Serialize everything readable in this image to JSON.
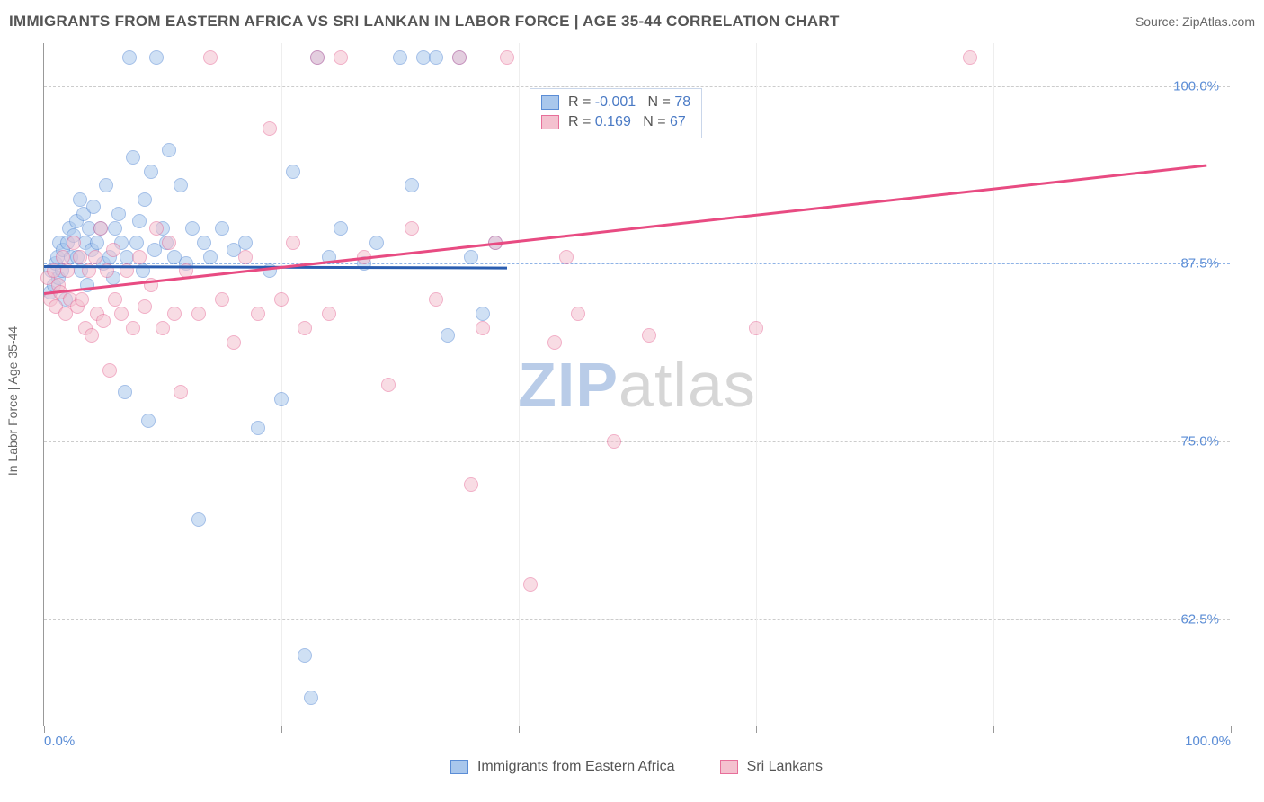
{
  "title": "IMMIGRANTS FROM EASTERN AFRICA VS SRI LANKAN IN LABOR FORCE | AGE 35-44 CORRELATION CHART",
  "source": "Source: ZipAtlas.com",
  "ylabel": "In Labor Force | Age 35-44",
  "watermark_a": "ZIP",
  "watermark_b": "atlas",
  "chart": {
    "type": "scatter",
    "xlim": [
      0,
      100
    ],
    "ylim": [
      55,
      103
    ],
    "yticks": [
      {
        "v": 62.5,
        "label": "62.5%"
      },
      {
        "v": 75.0,
        "label": "75.0%"
      },
      {
        "v": 87.5,
        "label": "87.5%"
      },
      {
        "v": 100.0,
        "label": "100.0%"
      }
    ],
    "xticks_minor": [
      0,
      20,
      40,
      60,
      80,
      100
    ],
    "xticks_labels": [
      {
        "v": 0,
        "label": "0.0%"
      },
      {
        "v": 100,
        "label": "100.0%"
      }
    ],
    "ref_line_y": 87.5,
    "ref_line_color": "#8fb3e6",
    "grid_color": "#cccccc",
    "background_color": "#ffffff",
    "marker_radius": 8,
    "marker_opacity": 0.55,
    "series": [
      {
        "name": "Immigrants from Eastern Africa",
        "color_fill": "#a9c7ec",
        "color_stroke": "#5b8dd6",
        "trend_color": "#2a5db0",
        "r": "-0.001",
        "n": "78",
        "trend": {
          "x1": 0,
          "y1": 87.4,
          "x2": 39,
          "y2": 87.3
        },
        "points": [
          [
            0.5,
            85.5
          ],
          [
            0.6,
            87.0
          ],
          [
            0.8,
            86.0
          ],
          [
            1.0,
            87.5
          ],
          [
            1.1,
            88.0
          ],
          [
            1.2,
            86.5
          ],
          [
            1.3,
            89.0
          ],
          [
            1.5,
            87.0
          ],
          [
            1.6,
            88.5
          ],
          [
            1.8,
            85.0
          ],
          [
            2.0,
            89.0
          ],
          [
            2.1,
            90.0
          ],
          [
            2.3,
            88.0
          ],
          [
            2.5,
            89.5
          ],
          [
            2.7,
            90.5
          ],
          [
            2.8,
            88.0
          ],
          [
            3.0,
            92.0
          ],
          [
            3.1,
            87.0
          ],
          [
            3.3,
            91.0
          ],
          [
            3.5,
            89.0
          ],
          [
            3.6,
            86.0
          ],
          [
            3.8,
            90.0
          ],
          [
            4.0,
            88.5
          ],
          [
            4.2,
            91.5
          ],
          [
            4.5,
            89.0
          ],
          [
            4.8,
            90.0
          ],
          [
            5.0,
            87.5
          ],
          [
            5.2,
            93.0
          ],
          [
            5.5,
            88.0
          ],
          [
            5.8,
            86.5
          ],
          [
            6.0,
            90.0
          ],
          [
            6.3,
            91.0
          ],
          [
            6.5,
            89.0
          ],
          [
            6.8,
            78.5
          ],
          [
            7.0,
            88.0
          ],
          [
            7.2,
            102.0
          ],
          [
            7.5,
            95.0
          ],
          [
            7.8,
            89.0
          ],
          [
            8.0,
            90.5
          ],
          [
            8.3,
            87.0
          ],
          [
            8.5,
            92.0
          ],
          [
            8.8,
            76.5
          ],
          [
            9.0,
            94.0
          ],
          [
            9.3,
            88.5
          ],
          [
            9.5,
            102.0
          ],
          [
            10.0,
            90.0
          ],
          [
            10.3,
            89.0
          ],
          [
            10.5,
            95.5
          ],
          [
            11.0,
            88.0
          ],
          [
            11.5,
            93.0
          ],
          [
            12.0,
            87.5
          ],
          [
            12.5,
            90.0
          ],
          [
            13.0,
            69.5
          ],
          [
            13.5,
            89.0
          ],
          [
            14.0,
            88.0
          ],
          [
            15.0,
            90.0
          ],
          [
            16.0,
            88.5
          ],
          [
            17.0,
            89.0
          ],
          [
            18.0,
            76.0
          ],
          [
            19.0,
            87.0
          ],
          [
            20.0,
            78.0
          ],
          [
            21.0,
            94.0
          ],
          [
            22.0,
            60.0
          ],
          [
            23.0,
            102.0
          ],
          [
            24.0,
            88.0
          ],
          [
            25.0,
            90.0
          ],
          [
            27.0,
            87.5
          ],
          [
            28.0,
            89.0
          ],
          [
            30.0,
            102.0
          ],
          [
            31.0,
            93.0
          ],
          [
            32.0,
            102.0
          ],
          [
            33.0,
            102.0
          ],
          [
            34.0,
            82.5
          ],
          [
            35.0,
            102.0
          ],
          [
            36.0,
            88.0
          ],
          [
            37.0,
            84.0
          ],
          [
            38.0,
            89.0
          ],
          [
            22.5,
            57.0
          ]
        ]
      },
      {
        "name": "Sri Lankans",
        "color_fill": "#f4c1cf",
        "color_stroke": "#e76f9a",
        "trend_color": "#e84b82",
        "r": "0.169",
        "n": "67",
        "trend": {
          "x1": 0,
          "y1": 85.5,
          "x2": 98,
          "y2": 94.5
        },
        "points": [
          [
            0.3,
            86.5
          ],
          [
            0.5,
            85.0
          ],
          [
            0.8,
            87.0
          ],
          [
            1.0,
            84.5
          ],
          [
            1.2,
            86.0
          ],
          [
            1.4,
            85.5
          ],
          [
            1.6,
            88.0
          ],
          [
            1.8,
            84.0
          ],
          [
            2.0,
            87.0
          ],
          [
            2.2,
            85.0
          ],
          [
            2.5,
            89.0
          ],
          [
            2.8,
            84.5
          ],
          [
            3.0,
            88.0
          ],
          [
            3.2,
            85.0
          ],
          [
            3.5,
            83.0
          ],
          [
            3.8,
            87.0
          ],
          [
            4.0,
            82.5
          ],
          [
            4.3,
            88.0
          ],
          [
            4.5,
            84.0
          ],
          [
            4.8,
            90.0
          ],
          [
            5.0,
            83.5
          ],
          [
            5.3,
            87.0
          ],
          [
            5.5,
            80.0
          ],
          [
            5.8,
            88.5
          ],
          [
            6.0,
            85.0
          ],
          [
            6.5,
            84.0
          ],
          [
            7.0,
            87.0
          ],
          [
            7.5,
            83.0
          ],
          [
            8.0,
            88.0
          ],
          [
            8.5,
            84.5
          ],
          [
            9.0,
            86.0
          ],
          [
            9.5,
            90.0
          ],
          [
            10.0,
            83.0
          ],
          [
            10.5,
            89.0
          ],
          [
            11.0,
            84.0
          ],
          [
            11.5,
            78.5
          ],
          [
            12.0,
            87.0
          ],
          [
            13.0,
            84.0
          ],
          [
            14.0,
            102.0
          ],
          [
            15.0,
            85.0
          ],
          [
            16.0,
            82.0
          ],
          [
            17.0,
            88.0
          ],
          [
            18.0,
            84.0
          ],
          [
            19.0,
            97.0
          ],
          [
            20.0,
            85.0
          ],
          [
            21.0,
            89.0
          ],
          [
            22.0,
            83.0
          ],
          [
            23.0,
            102.0
          ],
          [
            24.0,
            84.0
          ],
          [
            25.0,
            102.0
          ],
          [
            27.0,
            88.0
          ],
          [
            29.0,
            79.0
          ],
          [
            31.0,
            90.0
          ],
          [
            33.0,
            85.0
          ],
          [
            35.0,
            102.0
          ],
          [
            36.0,
            72.0
          ],
          [
            37.0,
            83.0
          ],
          [
            38.0,
            89.0
          ],
          [
            39.0,
            102.0
          ],
          [
            41.0,
            65.0
          ],
          [
            43.0,
            82.0
          ],
          [
            44.0,
            88.0
          ],
          [
            45.0,
            84.0
          ],
          [
            48.0,
            75.0
          ],
          [
            51.0,
            82.5
          ],
          [
            60.0,
            83.0
          ],
          [
            78.0,
            102.0
          ]
        ]
      }
    ]
  },
  "legend": {
    "series1_label": "Immigrants from Eastern Africa",
    "series2_label": "Sri Lankans"
  }
}
